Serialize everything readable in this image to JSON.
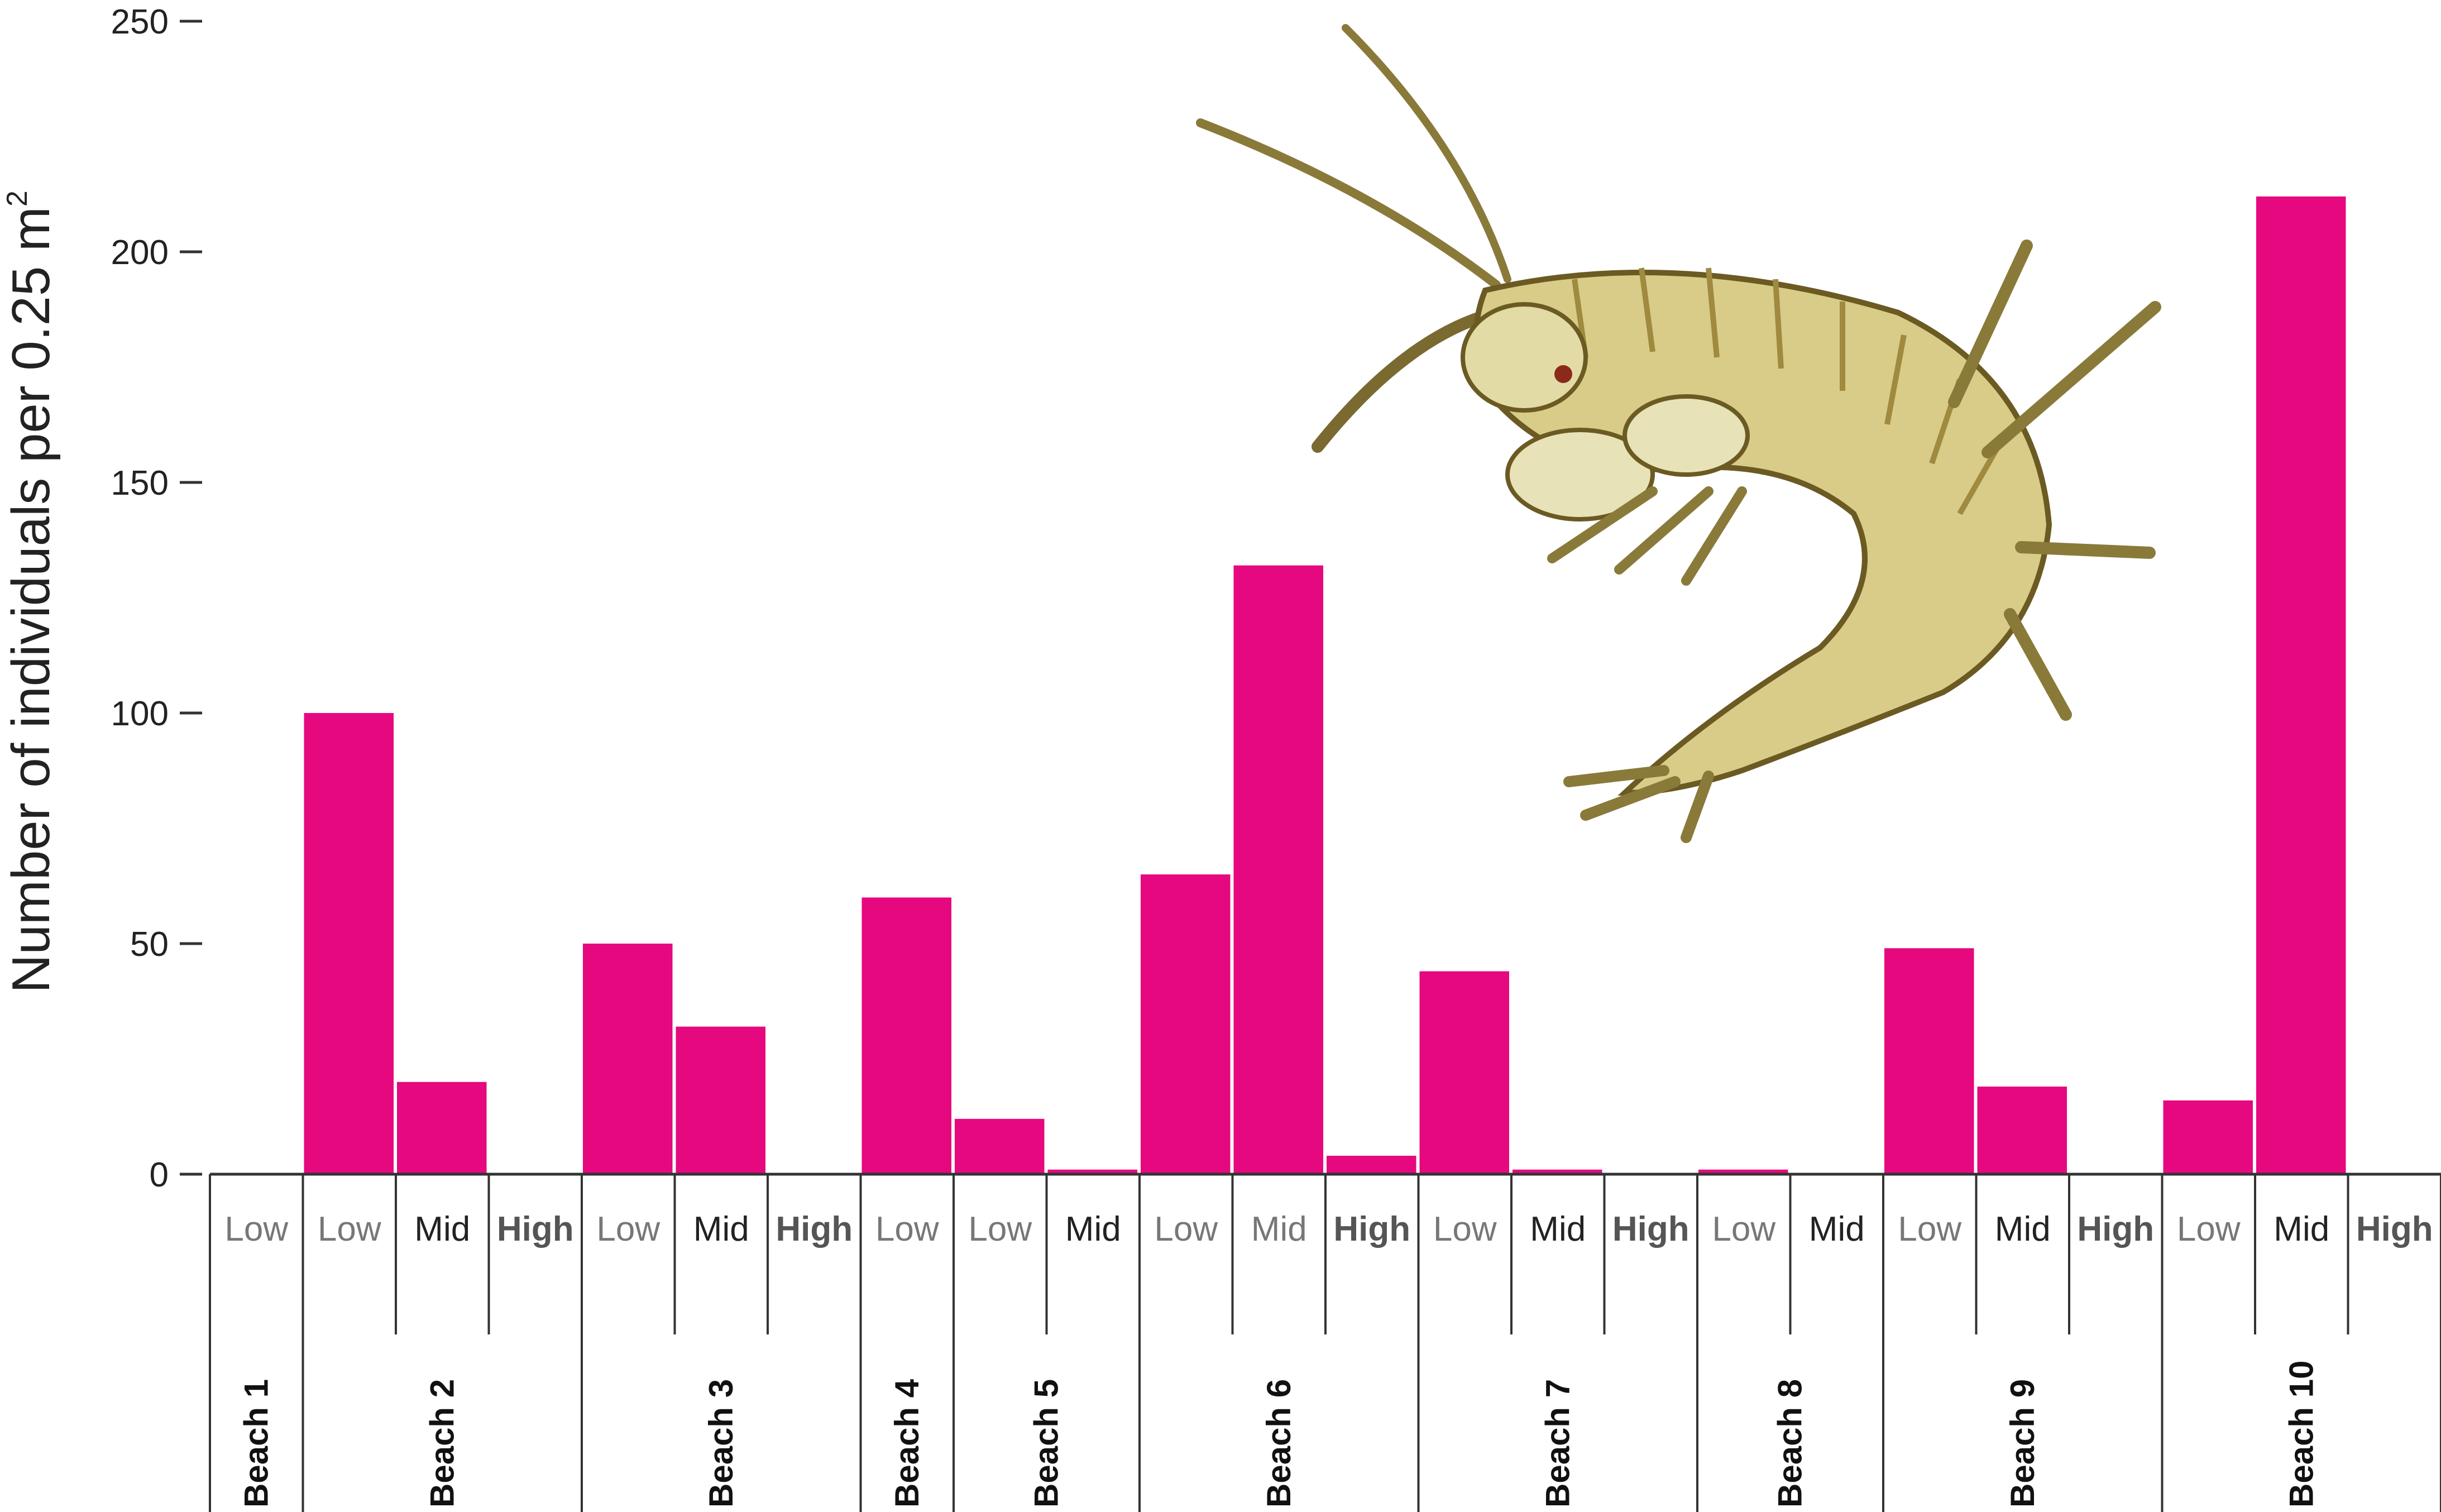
{
  "chart_data": {
    "type": "bar",
    "title": "",
    "ylabel": "Number of individuals per 0.25 m",
    "ylabel_superscript": "2",
    "ylim": [
      0,
      250
    ],
    "yticks": [
      "0",
      "50",
      "100",
      "150",
      "200",
      "250"
    ],
    "bar_color": "#e6087f",
    "grid": false,
    "legend": "none",
    "groups": [
      {
        "beach": "Beach 1",
        "zones": [
          {
            "zone": "Low",
            "value": 0,
            "style": "light"
          }
        ]
      },
      {
        "beach": "Beach 2",
        "zones": [
          {
            "zone": "Low",
            "value": 100,
            "style": "light"
          },
          {
            "zone": "Mid",
            "value": 20,
            "style": "normal"
          },
          {
            "zone": "High",
            "value": 0,
            "style": "bold"
          }
        ]
      },
      {
        "beach": "Beach 3",
        "zones": [
          {
            "zone": "Low",
            "value": 50,
            "style": "light"
          },
          {
            "zone": "Mid",
            "value": 32,
            "style": "normal"
          },
          {
            "zone": "High",
            "value": 0,
            "style": "bold"
          }
        ]
      },
      {
        "beach": "Beach 4",
        "zones": [
          {
            "zone": "Low",
            "value": 60,
            "style": "light"
          }
        ]
      },
      {
        "beach": "Beach 5",
        "zones": [
          {
            "zone": "Low",
            "value": 12,
            "style": "light"
          },
          {
            "zone": "Mid",
            "value": 1,
            "style": "normal"
          }
        ]
      },
      {
        "beach": "Beach 6",
        "zones": [
          {
            "zone": "Low",
            "value": 65,
            "style": "light"
          },
          {
            "zone": "Mid",
            "value": 132,
            "style": "light"
          },
          {
            "zone": "High",
            "value": 4,
            "style": "bold"
          }
        ]
      },
      {
        "beach": "Beach 7",
        "zones": [
          {
            "zone": "Low",
            "value": 44,
            "style": "light"
          },
          {
            "zone": "Mid",
            "value": 1,
            "style": "normal"
          },
          {
            "zone": "High",
            "value": 0,
            "style": "bold"
          }
        ]
      },
      {
        "beach": "Beach 8",
        "zones": [
          {
            "zone": "Low",
            "value": 1,
            "style": "light"
          },
          {
            "zone": "Mid",
            "value": 0,
            "style": "normal"
          }
        ]
      },
      {
        "beach": "Beach 9",
        "zones": [
          {
            "zone": "Low",
            "value": 49,
            "style": "light"
          },
          {
            "zone": "Mid",
            "value": 19,
            "style": "normal"
          },
          {
            "zone": "High",
            "value": 0,
            "style": "bold"
          }
        ]
      },
      {
        "beach": "Beach 10",
        "zones": [
          {
            "zone": "Low",
            "value": 16,
            "style": "light"
          },
          {
            "zone": "Mid",
            "value": 212,
            "style": "normal"
          },
          {
            "zone": "High",
            "value": 0,
            "style": "bold"
          }
        ]
      }
    ]
  },
  "decoration": {
    "icon": "amphipod-icon",
    "body_color": "#d8cc88",
    "outline_color": "#6b5a22"
  }
}
